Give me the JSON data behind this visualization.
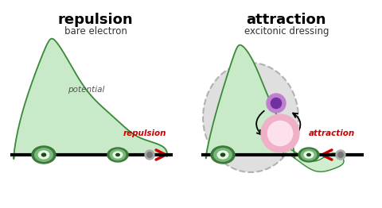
{
  "title_left": "repulsion",
  "subtitle_left": "bare electron",
  "title_right": "attraction",
  "subtitle_right": "excitonic dressing",
  "label_potential": "potential",
  "label_repulsion": "repulsion",
  "label_attraction": "attraction",
  "bg_color": "#ffffff",
  "green_fill": "#c8eac8",
  "green_stroke": "#3a8a3a",
  "arrow_color": "#cc0000"
}
